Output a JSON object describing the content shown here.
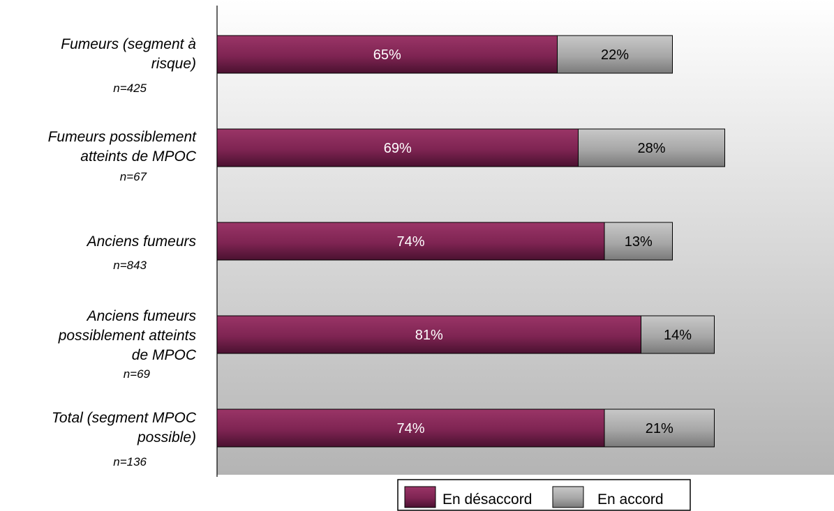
{
  "chart_data": {
    "type": "bar",
    "orientation": "horizontal",
    "stacked": true,
    "categories": [
      "Fumeurs (segment à risque)",
      "Fumeurs possiblement atteints de MPOC",
      "Anciens fumeurs",
      "Anciens fumeurs possiblement atteints de MPOC",
      "Total (segment MPOC possible)"
    ],
    "sample_sizes": [
      "n=425",
      "n=67",
      "n=843",
      "n=69",
      "n=136"
    ],
    "series": [
      {
        "name": "En désaccord",
        "values": [
          65,
          69,
          74,
          81,
          74
        ],
        "labels": [
          "65%",
          "69%",
          "74%",
          "81%",
          "74%"
        ],
        "color": "#8b2a5c"
      },
      {
        "name": "En accord",
        "values": [
          22,
          28,
          13,
          14,
          21
        ],
        "labels": [
          "22%",
          "28%",
          "13%",
          "14%",
          "21%"
        ],
        "color": "#a9a9a9"
      }
    ],
    "xlim": [
      0,
      117
    ],
    "grid": false,
    "legend": "bottom",
    "background": "gradient"
  }
}
